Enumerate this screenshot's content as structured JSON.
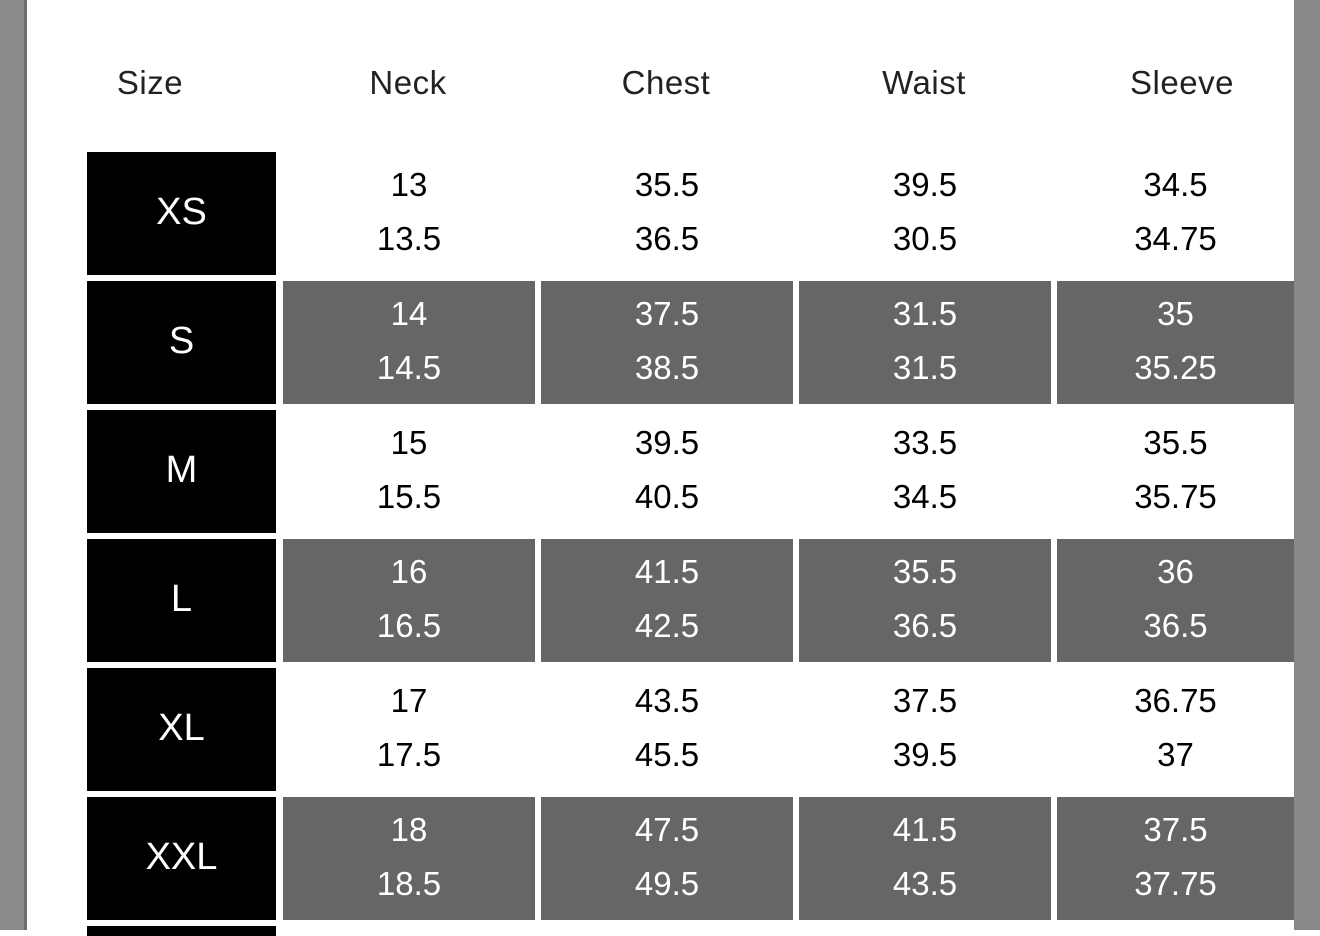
{
  "headers": [
    "Size",
    "Neck",
    "Chest",
    "Waist",
    "Sleeve"
  ],
  "rows": [
    {
      "size": "XS",
      "neck": [
        "13",
        "13.5"
      ],
      "chest": [
        "35.5",
        "36.5"
      ],
      "waist": [
        "39.5",
        "30.5"
      ],
      "sleeve": [
        "34.5",
        "34.75"
      ]
    },
    {
      "size": "S",
      "neck": [
        "14",
        "14.5"
      ],
      "chest": [
        "37.5",
        "38.5"
      ],
      "waist": [
        "31.5",
        "31.5"
      ],
      "sleeve": [
        "35",
        "35.25"
      ]
    },
    {
      "size": "M",
      "neck": [
        "15",
        "15.5"
      ],
      "chest": [
        "39.5",
        "40.5"
      ],
      "waist": [
        "33.5",
        "34.5"
      ],
      "sleeve": [
        "35.5",
        "35.75"
      ]
    },
    {
      "size": "L",
      "neck": [
        "16",
        "16.5"
      ],
      "chest": [
        "41.5",
        "42.5"
      ],
      "waist": [
        "35.5",
        "36.5"
      ],
      "sleeve": [
        "36",
        "36.5"
      ]
    },
    {
      "size": "XL",
      "neck": [
        "17",
        "17.5"
      ],
      "chest": [
        "43.5",
        "45.5"
      ],
      "waist": [
        "37.5",
        "39.5"
      ],
      "sleeve": [
        "36.75",
        "37"
      ]
    },
    {
      "size": "XXL",
      "neck": [
        "18",
        "18.5"
      ],
      "chest": [
        "47.5",
        "49.5"
      ],
      "waist": [
        "41.5",
        "43.5"
      ],
      "sleeve": [
        "37.5",
        "37.75"
      ]
    }
  ],
  "colors": {
    "size_cell": "#000000",
    "alt_row": "#666666",
    "border": "#888888"
  }
}
